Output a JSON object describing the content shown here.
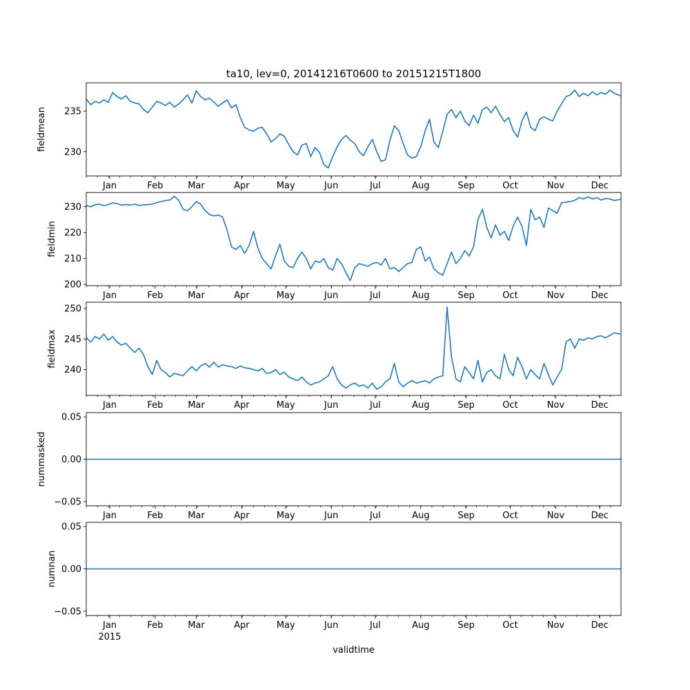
{
  "chart_data": {
    "type": "line",
    "title": "ta10, lev=0, 20141216T0600 to 20151215T1800",
    "xlabel": "validtime",
    "line_color": "#1f77b4",
    "x_range": [
      "2014-12-16T06:00",
      "2015-12-15T18:00"
    ],
    "month_ticks": [
      "Jan",
      "Feb",
      "Mar",
      "Apr",
      "May",
      "Jun",
      "Jul",
      "Aug",
      "Sep",
      "Oct",
      "Nov",
      "Dec"
    ],
    "year_label": "2015",
    "panels": [
      {
        "ylabel": "fieldmean",
        "ylim": [
          227,
          238.5
        ],
        "yticks": [
          "230",
          "235"
        ],
        "ytick_values": [
          230,
          235
        ],
        "x_days": [
          0,
          3,
          6,
          9,
          12,
          15,
          18,
          21,
          24,
          27,
          30,
          33,
          36,
          39,
          42,
          45,
          48,
          51,
          54,
          57,
          60,
          63,
          66,
          69,
          72,
          75,
          78,
          81,
          84,
          87,
          90,
          93,
          96,
          99,
          102,
          105,
          108,
          111,
          114,
          117,
          120,
          123,
          126,
          129,
          132,
          135,
          138,
          141,
          144,
          147,
          150,
          153,
          156,
          159,
          162,
          165,
          168,
          171,
          174,
          177,
          180,
          183,
          186,
          189,
          192,
          195,
          198,
          201,
          204,
          207,
          210,
          213,
          216,
          219,
          222,
          225,
          228,
          231,
          234,
          237,
          240,
          243,
          246,
          249,
          252,
          255,
          258,
          261,
          264,
          267,
          270,
          273,
          276,
          279,
          282,
          285,
          288,
          291,
          294,
          297,
          300,
          303,
          306,
          309,
          312,
          315,
          318,
          321,
          324,
          327,
          330,
          333,
          336,
          339,
          342,
          345,
          348,
          351,
          354,
          357,
          360,
          364
        ],
        "values": [
          236.5,
          235.8,
          236.2,
          236.0,
          236.4,
          236.1,
          237.3,
          236.8,
          236.5,
          236.9,
          236.2,
          236.0,
          235.9,
          235.2,
          234.8,
          235.5,
          236.2,
          236.0,
          235.7,
          236.1,
          235.5,
          235.9,
          236.4,
          237.0,
          236.0,
          237.5,
          236.8,
          236.4,
          236.6,
          236.1,
          235.6,
          236.0,
          236.4,
          235.4,
          235.8,
          234.2,
          233.0,
          232.7,
          232.5,
          232.9,
          233.0,
          232.2,
          231.2,
          231.6,
          232.2,
          231.9,
          230.9,
          230.0,
          229.6,
          230.8,
          231.0,
          229.4,
          230.5,
          229.9,
          228.4,
          228.0,
          229.4,
          230.6,
          231.5,
          232.0,
          231.4,
          231.0,
          230.0,
          229.5,
          230.6,
          231.5,
          230.0,
          228.8,
          229.0,
          231.4,
          233.2,
          232.6,
          231.0,
          229.6,
          229.2,
          229.4,
          230.6,
          232.6,
          234.0,
          231.2,
          230.5,
          232.5,
          234.6,
          235.2,
          234.2,
          235.0,
          233.8,
          233.2,
          234.5,
          233.5,
          235.2,
          235.5,
          234.8,
          235.6,
          234.6,
          233.7,
          234.2,
          232.6,
          231.8,
          233.8,
          234.9,
          233.0,
          232.6,
          234.0,
          234.3,
          234.0,
          233.8,
          235.0,
          235.9,
          236.8,
          237.0,
          237.6,
          236.8,
          237.2,
          236.9,
          237.4,
          237.0,
          237.3,
          237.1,
          237.6,
          237.2,
          236.9
        ]
      },
      {
        "ylabel": "fieldmin",
        "ylim": [
          199.5,
          235.5
        ],
        "yticks": [
          "200",
          "210",
          "220",
          "230"
        ],
        "ytick_values": [
          200,
          210,
          220,
          230
        ],
        "x_days": [
          0,
          3,
          6,
          9,
          12,
          15,
          18,
          21,
          24,
          27,
          30,
          33,
          36,
          39,
          42,
          45,
          48,
          51,
          54,
          57,
          60,
          63,
          66,
          69,
          72,
          75,
          78,
          81,
          84,
          87,
          90,
          93,
          96,
          99,
          102,
          105,
          108,
          111,
          114,
          117,
          120,
          123,
          126,
          129,
          132,
          135,
          138,
          141,
          144,
          147,
          150,
          153,
          156,
          159,
          162,
          165,
          168,
          171,
          174,
          177,
          180,
          183,
          186,
          189,
          192,
          195,
          198,
          201,
          204,
          207,
          210,
          213,
          216,
          219,
          222,
          225,
          228,
          231,
          234,
          237,
          240,
          243,
          246,
          249,
          252,
          255,
          258,
          261,
          264,
          267,
          270,
          273,
          276,
          279,
          282,
          285,
          288,
          291,
          294,
          297,
          300,
          303,
          306,
          309,
          312,
          315,
          318,
          321,
          324,
          327,
          330,
          333,
          336,
          339,
          342,
          345,
          348,
          351,
          354,
          357,
          360,
          364
        ],
        "values": [
          230.5,
          230.0,
          230.8,
          231.0,
          230.4,
          230.8,
          231.5,
          231.2,
          230.6,
          230.9,
          230.6,
          231.0,
          230.5,
          230.7,
          230.8,
          231.0,
          231.6,
          232.0,
          232.4,
          232.6,
          234.0,
          232.5,
          229.0,
          228.5,
          230.0,
          232.0,
          231.0,
          228.5,
          227.0,
          226.5,
          226.8,
          226.0,
          221.0,
          214.5,
          213.5,
          215.0,
          212.0,
          215.0,
          220.5,
          214.0,
          210.0,
          208.0,
          206.0,
          211.0,
          215.5,
          209.0,
          207.0,
          206.5,
          210.0,
          212.5,
          210.0,
          206.0,
          209.0,
          208.5,
          210.0,
          206.5,
          205.5,
          210.0,
          208.0,
          204.5,
          201.5,
          206.5,
          208.0,
          207.5,
          207.0,
          208.0,
          208.5,
          207.5,
          210.0,
          206.0,
          206.5,
          205.0,
          206.5,
          208.0,
          208.5,
          213.5,
          214.5,
          209.0,
          210.5,
          206.0,
          204.5,
          203.5,
          208.0,
          212.5,
          208.0,
          210.0,
          213.0,
          211.0,
          214.5,
          225.0,
          229.0,
          222.0,
          218.0,
          223.0,
          219.0,
          220.5,
          217.0,
          222.5,
          226.0,
          222.5,
          215.0,
          229.0,
          225.0,
          226.0,
          222.0,
          229.5,
          228.5,
          227.5,
          231.5,
          231.8,
          232.0,
          232.5,
          233.5,
          233.0,
          233.8,
          233.0,
          233.5,
          232.6,
          233.2,
          233.0,
          232.4,
          232.8
        ]
      },
      {
        "ylabel": "fieldmax",
        "ylim": [
          235.8,
          251
        ],
        "yticks": [
          "240",
          "245",
          "250"
        ],
        "ytick_values": [
          240,
          245,
          250
        ],
        "x_days": [
          0,
          3,
          6,
          9,
          12,
          15,
          18,
          21,
          24,
          27,
          30,
          33,
          36,
          39,
          42,
          45,
          48,
          51,
          54,
          57,
          60,
          63,
          66,
          69,
          72,
          75,
          78,
          81,
          84,
          87,
          90,
          93,
          96,
          99,
          102,
          105,
          108,
          111,
          114,
          117,
          120,
          123,
          126,
          129,
          132,
          135,
          138,
          141,
          144,
          147,
          150,
          153,
          156,
          159,
          162,
          165,
          168,
          171,
          174,
          177,
          180,
          183,
          186,
          189,
          192,
          195,
          198,
          201,
          204,
          207,
          210,
          213,
          216,
          219,
          222,
          225,
          228,
          231,
          234,
          237,
          240,
          243,
          246,
          249,
          252,
          255,
          258,
          261,
          264,
          267,
          270,
          273,
          276,
          279,
          282,
          285,
          288,
          291,
          294,
          297,
          300,
          303,
          306,
          309,
          312,
          315,
          318,
          321,
          324,
          327,
          330,
          333,
          336,
          339,
          342,
          345,
          348,
          351,
          354,
          357,
          360,
          364
        ],
        "values": [
          245.2,
          244.5,
          245.4,
          245.0,
          245.8,
          244.8,
          245.4,
          244.5,
          244.0,
          244.3,
          243.5,
          242.8,
          243.5,
          242.5,
          240.5,
          239.2,
          241.5,
          240.0,
          239.5,
          238.8,
          239.4,
          239.2,
          239.0,
          239.8,
          240.5,
          239.8,
          240.6,
          241.0,
          240.4,
          241.2,
          240.4,
          240.8,
          240.6,
          240.5,
          240.2,
          240.6,
          240.3,
          240.2,
          240.0,
          239.8,
          240.2,
          239.4,
          239.5,
          240.0,
          239.2,
          239.6,
          238.8,
          238.5,
          238.2,
          238.8,
          238.0,
          237.5,
          237.8,
          238.0,
          238.5,
          239.0,
          240.5,
          238.5,
          237.5,
          237.0,
          237.5,
          237.8,
          237.3,
          237.5,
          237.0,
          237.8,
          236.8,
          237.2,
          238.0,
          238.5,
          241.0,
          238.0,
          237.2,
          237.8,
          238.2,
          237.8,
          238.0,
          238.2,
          237.8,
          238.5,
          238.8,
          239.0,
          250.2,
          242.0,
          238.5,
          238.0,
          240.5,
          239.5,
          238.5,
          241.5,
          238.0,
          239.5,
          240.0,
          239.0,
          238.5,
          242.5,
          240.0,
          239.0,
          242.0,
          240.5,
          238.5,
          240.0,
          239.2,
          238.5,
          241.0,
          239.2,
          237.5,
          238.8,
          240.0,
          244.5,
          245.0,
          243.5,
          245.0,
          244.8,
          245.2,
          245.0,
          245.4,
          245.5,
          245.2,
          245.6,
          246.0,
          245.8
        ]
      },
      {
        "ylabel": "nummasked",
        "ylim": [
          -0.055,
          0.055
        ],
        "yticks": [
          "−0.05",
          "0.00",
          "0.05"
        ],
        "ytick_values": [
          -0.05,
          0,
          0.05
        ],
        "x_days": [
          0,
          364.5
        ],
        "values": [
          0,
          0
        ]
      },
      {
        "ylabel": "numnan",
        "ylim": [
          -0.055,
          0.055
        ],
        "yticks": [
          "−0.05",
          "0.00",
          "0.05"
        ],
        "ytick_values": [
          -0.05,
          0,
          0.05
        ],
        "x_days": [
          0,
          364.5
        ],
        "values": [
          0,
          0
        ]
      }
    ]
  }
}
